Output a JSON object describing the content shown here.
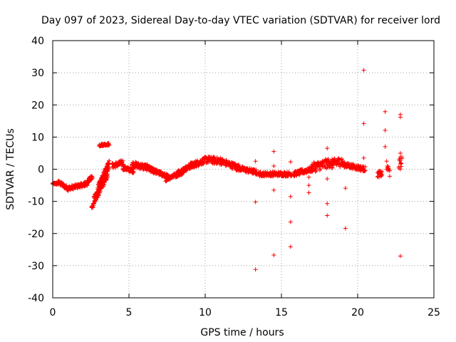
{
  "chart_data": {
    "type": "scatter",
    "title": "Day 097 of 2023, Sidereal Day-to-day VTEC variation (SDTVAR) for receiver lord",
    "xlabel": "GPS time / hours",
    "ylabel": "SDTVAR / TECUs",
    "xlim": [
      0,
      25
    ],
    "ylim": [
      -40,
      40
    ],
    "xticks": [
      0,
      5,
      10,
      15,
      20,
      25
    ],
    "yticks": [
      -40,
      -30,
      -20,
      -10,
      0,
      10,
      20,
      30,
      40
    ],
    "xtick_labels": [
      "0",
      "5",
      "10",
      "15",
      "20",
      "25"
    ],
    "ytick_labels": [
      "-40",
      "-30",
      "-20",
      "-10",
      "0",
      "10",
      "20",
      "30",
      "40"
    ],
    "grid": true,
    "marker": "+",
    "color": "#ff0000",
    "segments": [
      {
        "x0": 0.0,
        "x1": 0.35,
        "y0": -4.5,
        "y1": -4.5,
        "spread": 0.6
      },
      {
        "x0": 0.35,
        "x1": 1.0,
        "y0": -4.0,
        "y1": -6.0,
        "spread": 1.4
      },
      {
        "x0": 1.0,
        "x1": 2.3,
        "y0": -6.0,
        "y1": -4.5,
        "spread": 1.4
      },
      {
        "x0": 2.0,
        "x1": 2.6,
        "y0": -5.0,
        "y1": -2.5,
        "spread": 1.5
      },
      {
        "x0": 2.55,
        "x1": 3.6,
        "y0": -12.0,
        "y1": -2.0,
        "spread": 1.5
      },
      {
        "x0": 2.7,
        "x1": 3.7,
        "y0": -9.0,
        "y1": 1.0,
        "spread": 1.5
      },
      {
        "x0": 3.0,
        "x1": 3.7,
        "y0": -5.0,
        "y1": 2.5,
        "spread": 1.0
      },
      {
        "x0": 3.05,
        "x1": 3.7,
        "y0": 7.5,
        "y1": 7.8,
        "spread": 0.8
      },
      {
        "x0": 3.9,
        "x1": 4.6,
        "y0": 1.0,
        "y1": 2.0,
        "spread": 1.8
      },
      {
        "x0": 4.6,
        "x1": 5.3,
        "y0": 0.5,
        "y1": -0.5,
        "spread": 1.5
      },
      {
        "x0": 5.2,
        "x1": 6.2,
        "y0": 1.5,
        "y1": 0.5,
        "spread": 2.0
      },
      {
        "x0": 6.0,
        "x1": 6.8,
        "y0": 1.0,
        "y1": -1.0,
        "spread": 1.5
      },
      {
        "x0": 6.2,
        "x1": 7.6,
        "y0": 0.5,
        "y1": -2.5,
        "spread": 1.5
      },
      {
        "x0": 7.4,
        "x1": 8.5,
        "y0": -3.0,
        "y1": -1.0,
        "spread": 1.5
      },
      {
        "x0": 8.2,
        "x1": 9.3,
        "y0": -1.0,
        "y1": 1.5,
        "spread": 1.6
      },
      {
        "x0": 9.0,
        "x1": 10.0,
        "y0": 1.0,
        "y1": 2.8,
        "spread": 2.0
      },
      {
        "x0": 10.0,
        "x1": 11.1,
        "y0": 3.0,
        "y1": 2.5,
        "spread": 2.2
      },
      {
        "x0": 11.0,
        "x1": 12.2,
        "y0": 2.5,
        "y1": 0.5,
        "spread": 2.0
      },
      {
        "x0": 12.0,
        "x1": 13.4,
        "y0": 0.5,
        "y1": -1.0,
        "spread": 1.6
      },
      {
        "x0": 13.5,
        "x1": 14.5,
        "y0": -1.5,
        "y1": -1.5,
        "spread": 1.4
      },
      {
        "x0": 14.5,
        "x1": 15.7,
        "y0": -1.5,
        "y1": -1.5,
        "spread": 1.4
      },
      {
        "x0": 15.8,
        "x1": 17.0,
        "y0": -1.5,
        "y1": 0.0,
        "spread": 1.6
      },
      {
        "x0": 17.0,
        "x1": 18.2,
        "y0": 0.5,
        "y1": 2.0,
        "spread": 3.0
      },
      {
        "x0": 18.2,
        "x1": 19.0,
        "y0": 1.5,
        "y1": 2.5,
        "spread": 3.0
      },
      {
        "x0": 19.0,
        "x1": 20.5,
        "y0": 1.5,
        "y1": 0.0,
        "spread": 1.6
      },
      {
        "x0": 21.3,
        "x1": 21.6,
        "y0": -1.5,
        "y1": -1.5,
        "spread": 2.0
      },
      {
        "x0": 21.9,
        "x1": 22.1,
        "y0": 1.0,
        "y1": -1.0,
        "spread": 3.0
      },
      {
        "x0": 22.7,
        "x1": 22.9,
        "y0": 1.5,
        "y1": 2.5,
        "spread": 3.0
      }
    ],
    "outliers": [
      {
        "x": 13.3,
        "y": 2.5
      },
      {
        "x": 13.3,
        "y": -10.2
      },
      {
        "x": 13.3,
        "y": -31.2
      },
      {
        "x": 14.5,
        "y": 5.5
      },
      {
        "x": 14.5,
        "y": 1.0
      },
      {
        "x": 14.5,
        "y": -6.5
      },
      {
        "x": 14.5,
        "y": -26.7
      },
      {
        "x": 15.6,
        "y": 2.3
      },
      {
        "x": 15.6,
        "y": -8.5
      },
      {
        "x": 15.6,
        "y": -16.4
      },
      {
        "x": 15.6,
        "y": -24.1
      },
      {
        "x": 16.8,
        "y": -2.5
      },
      {
        "x": 16.8,
        "y": -5.0
      },
      {
        "x": 16.8,
        "y": -7.3
      },
      {
        "x": 18.0,
        "y": 6.5
      },
      {
        "x": 18.0,
        "y": -3.0
      },
      {
        "x": 18.0,
        "y": -10.7
      },
      {
        "x": 18.0,
        "y": -14.4
      },
      {
        "x": 19.2,
        "y": -5.9
      },
      {
        "x": 19.2,
        "y": -18.4
      },
      {
        "x": 20.4,
        "y": 30.8
      },
      {
        "x": 20.4,
        "y": 14.2
      },
      {
        "x": 20.4,
        "y": 3.5
      },
      {
        "x": 21.8,
        "y": 17.9
      },
      {
        "x": 21.8,
        "y": 12.1
      },
      {
        "x": 21.8,
        "y": 7.0
      },
      {
        "x": 22.8,
        "y": 17.0
      },
      {
        "x": 22.8,
        "y": 16.2
      },
      {
        "x": 22.8,
        "y": 5.0
      },
      {
        "x": 22.8,
        "y": 3.8
      },
      {
        "x": 22.8,
        "y": 0.0
      },
      {
        "x": 22.8,
        "y": -27.0
      }
    ]
  }
}
